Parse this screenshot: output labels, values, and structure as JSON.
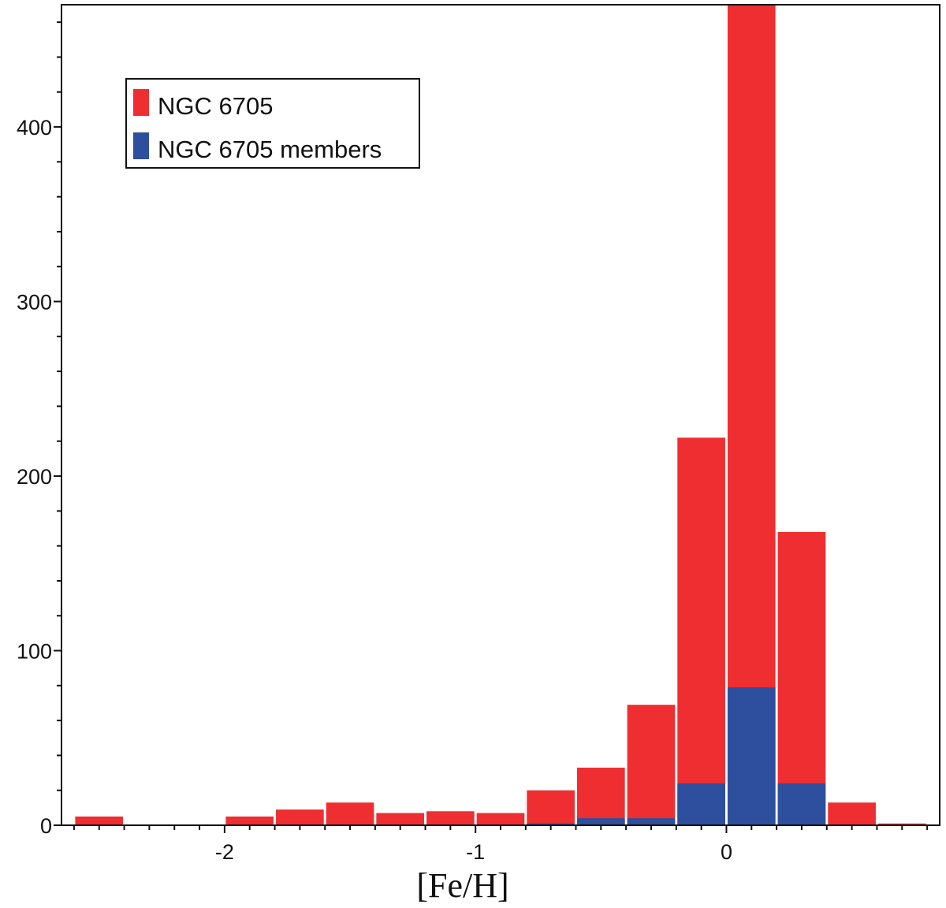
{
  "chart_data": {
    "type": "bar",
    "stacked": false,
    "xlabel": "[Fe/H]",
    "ylabel": "",
    "title": "",
    "xlim": [
      -2.65,
      0.85
    ],
    "ylim": [
      0,
      470
    ],
    "xticks": [
      -2,
      -1,
      0
    ],
    "yticks": [
      0,
      100,
      200,
      300,
      400
    ],
    "bin_width": 0.2,
    "bin_centers": [
      -2.5,
      -2.3,
      -2.1,
      -1.9,
      -1.7,
      -1.5,
      -1.3,
      -1.1,
      -0.9,
      -0.7,
      -0.5,
      -0.3,
      -0.1,
      0.1,
      0.3,
      0.5,
      0.7
    ],
    "series": [
      {
        "name": "NGC 6705",
        "color": "#ee2e31",
        "values": [
          5,
          0,
          0,
          5,
          9,
          13,
          7,
          8,
          7,
          20,
          33,
          69,
          222,
          470,
          168,
          13,
          1
        ]
      },
      {
        "name": "NGC 6705 members",
        "color": "#2d4f9e",
        "values": [
          0,
          0,
          0,
          0,
          0,
          0,
          0,
          0,
          0,
          1,
          4,
          4,
          24,
          79,
          24,
          0,
          0
        ]
      }
    ],
    "legend_position": "top-left",
    "grid": false
  }
}
